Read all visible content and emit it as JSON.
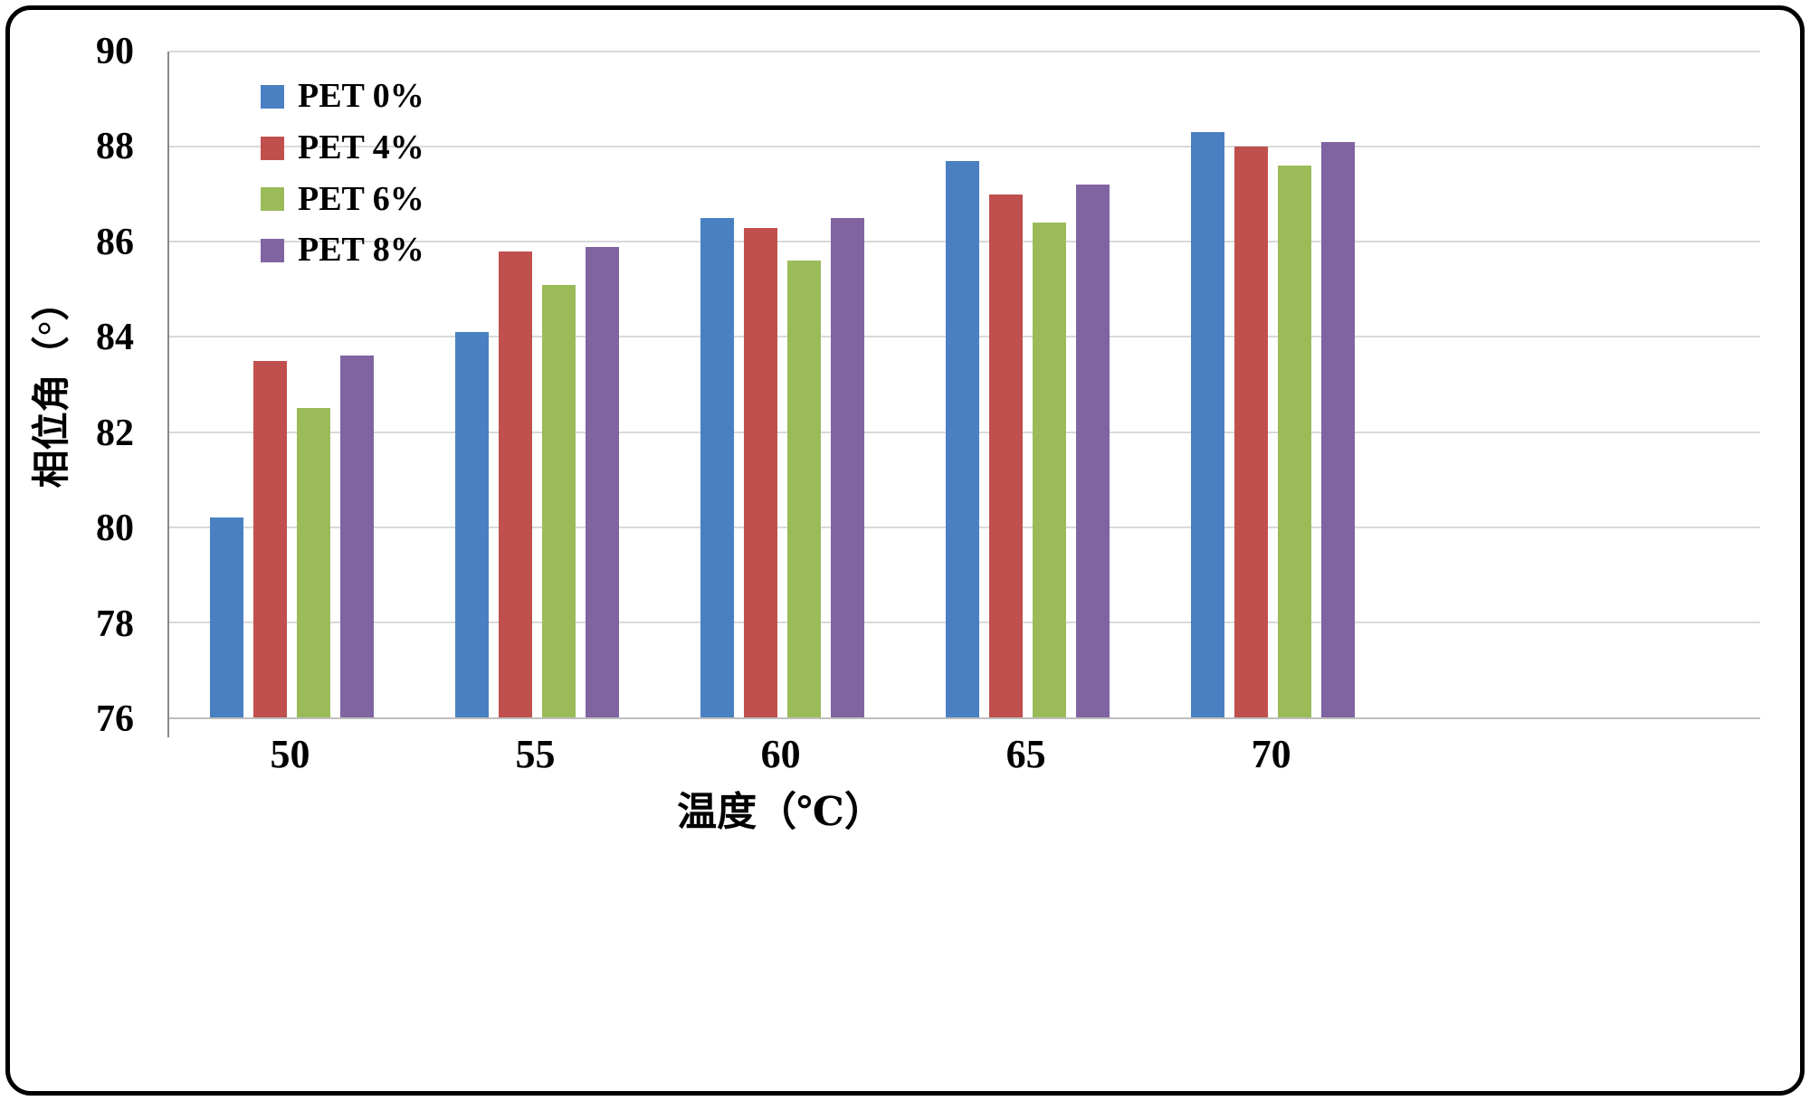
{
  "figure": {
    "background_color": "#ffffff",
    "border_color": "#000000"
  },
  "chart_data": {
    "type": "bar",
    "title": "",
    "xlabel": "温度（℃）",
    "ylabel": "相位角（°）",
    "categories": [
      "50",
      "55",
      "60",
      "65",
      "70"
    ],
    "series": [
      {
        "name": "PET 0%",
        "color": "#4A80C2",
        "values": [
          80.2,
          84.1,
          86.5,
          87.7,
          88.3
        ]
      },
      {
        "name": "PET 4%",
        "color": "#C0504D",
        "values": [
          83.5,
          85.8,
          86.3,
          87.0,
          88.0
        ]
      },
      {
        "name": "PET 6%",
        "color": "#9BBB59",
        "values": [
          82.5,
          85.1,
          85.6,
          86.4,
          87.6
        ]
      },
      {
        "name": "PET 8%",
        "color": "#8064A2",
        "values": [
          83.6,
          85.9,
          86.5,
          87.2,
          88.1
        ]
      }
    ],
    "ylim": [
      76,
      90
    ],
    "ytick_step": 2,
    "yticks": [
      76,
      78,
      80,
      82,
      84,
      86,
      88,
      90
    ],
    "grid": true,
    "gridline_color": "#D9D9D9",
    "axis_line_color": "#BFBFBF",
    "legend_position": "top-left-inside"
  }
}
